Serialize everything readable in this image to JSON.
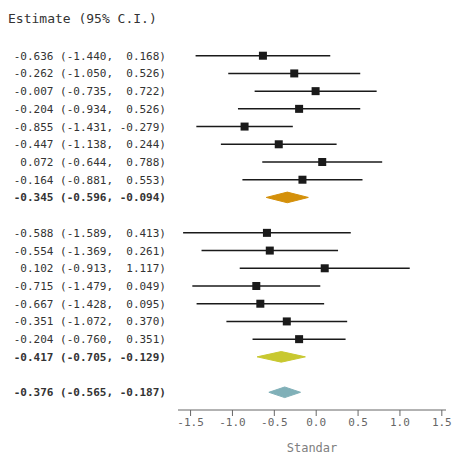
{
  "chart_data": {
    "type": "forest",
    "title": "Estimate (95% C.I.)",
    "xlabel": "Standar",
    "xlim": [
      -1.65,
      1.55
    ],
    "xticks": [
      -1.5,
      {
        "value": -1.0,
        "label": "-1.0"
      },
      -0.5,
      {
        "value": 0,
        "label": "0.0"
      },
      0.5,
      {
        "value": 1.0,
        "label": "1.0"
      },
      1.5
    ],
    "categories": [
      "-0.636 (-1.440,  0.168)",
      "-0.262 (-1.050,  0.526)",
      "-0.007 (-0.735,  0.722)",
      "-0.204 (-0.934,  0.526)",
      "-0.855 (-1.431, -0.279)",
      "-0.447 (-1.138,  0.244)",
      " 0.072 (-0.644,  0.788)",
      "-0.164 (-0.881,  0.553)",
      "-0.345 (-0.596, -0.094)",
      null,
      "-0.588 (-1.589,  0.413)",
      "-0.554 (-1.369,  0.261)",
      " 0.102 (-0.913,  1.117)",
      "-0.715 (-1.479,  0.049)",
      "-0.667 (-1.428,  0.095)",
      "-0.351 (-1.072,  0.370)",
      "-0.204 (-0.760,  0.351)",
      "-0.417 (-0.705, -0.129)",
      null,
      "-0.376 (-0.565, -0.187)"
    ],
    "series": [
      {
        "marker": "square",
        "color": "#1a1a1a",
        "values": [
          -0.636,
          -0.262,
          -0.007,
          -0.204,
          -0.855,
          -0.447,
          0.072,
          -0.164,
          null,
          null,
          -0.588,
          -0.554,
          0.102,
          -0.715,
          -0.667,
          -0.351,
          -0.204,
          null,
          null,
          null
        ],
        "ci_low": [
          -1.44,
          -1.05,
          -0.735,
          -0.934,
          -1.431,
          -1.138,
          -0.644,
          -0.881,
          null,
          null,
          -1.589,
          -1.369,
          -0.913,
          -1.479,
          -1.428,
          -1.072,
          -0.76,
          null,
          null,
          null
        ],
        "ci_high": [
          0.168,
          0.526,
          0.722,
          0.526,
          -0.279,
          0.244,
          0.788,
          0.553,
          null,
          null,
          0.413,
          0.261,
          1.117,
          0.049,
          0.095,
          0.37,
          0.351,
          null,
          null,
          null
        ]
      },
      {
        "marker": "diamond",
        "colors": [
          null,
          null,
          null,
          null,
          null,
          null,
          null,
          null,
          "#d4900a",
          null,
          null,
          null,
          null,
          null,
          null,
          null,
          null,
          "#c8c830",
          null,
          "#80b0b8"
        ],
        "values": [
          null,
          null,
          null,
          null,
          null,
          null,
          null,
          null,
          -0.345,
          null,
          null,
          null,
          null,
          null,
          null,
          null,
          null,
          -0.417,
          null,
          -0.376
        ],
        "ci_low": [
          null,
          null,
          null,
          null,
          null,
          null,
          null,
          null,
          -0.596,
          null,
          null,
          null,
          null,
          null,
          null,
          null,
          null,
          -0.705,
          null,
          -0.565
        ],
        "ci_high": [
          null,
          null,
          null,
          null,
          null,
          null,
          null,
          null,
          -0.094,
          null,
          null,
          null,
          null,
          null,
          null,
          null,
          null,
          -0.129,
          null,
          -0.187
        ]
      }
    ]
  }
}
